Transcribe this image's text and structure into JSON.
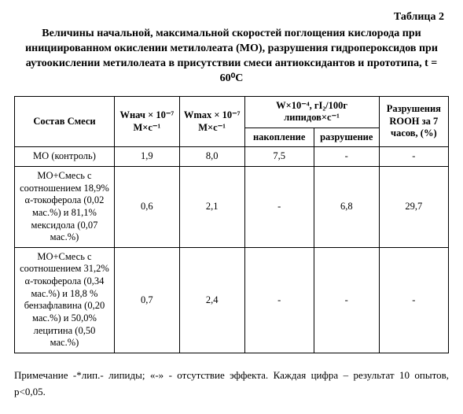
{
  "table_label": "Таблица 2",
  "title": "Величины начальной, максимальной скоростей поглощения кислорода при инициированном окислении метилолеата (МО), разрушения гидропероксидов при аутоокислении метилолеата в присутствии смеси антиоксидантов и прототипа, t = 60⁰С",
  "columns": {
    "c0": "Состав\nСмеси",
    "c1": "Wнач × 10⁻⁷\nМ×с⁻¹",
    "c2": "Wmax × 10⁻⁷\nМ×с⁻¹",
    "c3_top": "W×10⁻⁴,\nгI₂/100г липидов×с⁻¹",
    "c3_a": "накопление",
    "c3_b": "разрушение",
    "c4": "Разрушения ROOH за 7 часов, (%)"
  },
  "rows": [
    {
      "label": "МО (контроль)",
      "w_init": "1,9",
      "w_max": "8,0",
      "acc": "7,5",
      "dest": "-",
      "rooh": "-"
    },
    {
      "label": "МО+Смесь с соотношением 18,9% α-токоферола (0,02 мас.%) и 81,1% мексидола (0,07 мас.%)",
      "w_init": "0,6",
      "w_max": "2,1",
      "acc": "-",
      "dest": "6,8",
      "rooh": "29,7"
    },
    {
      "label": "МО+Смесь с соотношением 31,2% α-токоферола (0,34 мас.%) и 18,8 % бензафлавина (0,20 мас.%) и 50,0% лецитина (0,50 мас.%)",
      "w_init": "0,7",
      "w_max": "2,4",
      "acc": "-",
      "dest": "-",
      "rooh": "-"
    }
  ],
  "footnote": "Примечание -*лип.- липиды; «-» - отсутствие эффекта. Каждая цифра – результат 10 опытов, p<0,05."
}
